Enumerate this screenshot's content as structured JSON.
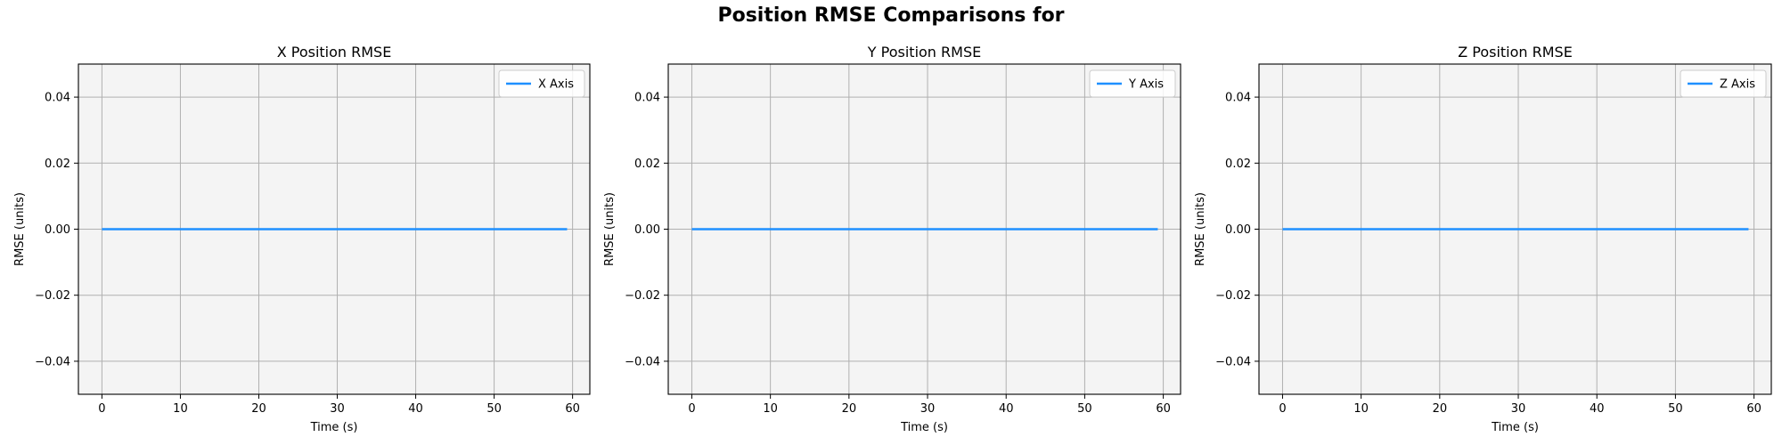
{
  "suptitle": "Position RMSE Comparisons for",
  "colors": {
    "line": "#1e90ff",
    "plot_background": "#f4f4f4",
    "grid": "#b0b0b0",
    "axes_edge": "#000000"
  },
  "chart_data": [
    {
      "type": "line",
      "title": "X Position RMSE",
      "xlabel": "Time (s)",
      "ylabel": "RMSE (units)",
      "xlim": [
        -3,
        62.2
      ],
      "ylim": [
        -0.05,
        0.05
      ],
      "xticks": [
        0,
        10,
        20,
        30,
        40,
        50,
        60
      ],
      "xtick_labels": [
        "0",
        "10",
        "20",
        "30",
        "40",
        "50",
        "60"
      ],
      "yticks": [
        -0.04,
        -0.02,
        0.0,
        0.02,
        0.04
      ],
      "ytick_labels": [
        "−0.04",
        "−0.02",
        "0.00",
        "0.02",
        "0.04"
      ],
      "grid": true,
      "legend_position": "upper right",
      "series": [
        {
          "name": "X Axis",
          "color": "#1e90ff",
          "x": [
            0,
            59.3
          ],
          "y": [
            0,
            0
          ]
        }
      ]
    },
    {
      "type": "line",
      "title": "Y Position RMSE",
      "xlabel": "Time (s)",
      "ylabel": "RMSE (units)",
      "xlim": [
        -3,
        62.2
      ],
      "ylim": [
        -0.05,
        0.05
      ],
      "xticks": [
        0,
        10,
        20,
        30,
        40,
        50,
        60
      ],
      "xtick_labels": [
        "0",
        "10",
        "20",
        "30",
        "40",
        "50",
        "60"
      ],
      "yticks": [
        -0.04,
        -0.02,
        0.0,
        0.02,
        0.04
      ],
      "ytick_labels": [
        "−0.04",
        "−0.02",
        "0.00",
        "0.02",
        "0.04"
      ],
      "grid": true,
      "legend_position": "upper right",
      "series": [
        {
          "name": "Y Axis",
          "color": "#1e90ff",
          "x": [
            0,
            59.3
          ],
          "y": [
            0,
            0
          ]
        }
      ]
    },
    {
      "type": "line",
      "title": "Z Position RMSE",
      "xlabel": "Time (s)",
      "ylabel": "RMSE (units)",
      "xlim": [
        -3,
        62.2
      ],
      "ylim": [
        -0.05,
        0.05
      ],
      "xticks": [
        0,
        10,
        20,
        30,
        40,
        50,
        60
      ],
      "xtick_labels": [
        "0",
        "10",
        "20",
        "30",
        "40",
        "50",
        "60"
      ],
      "yticks": [
        -0.04,
        -0.02,
        0.0,
        0.02,
        0.04
      ],
      "ytick_labels": [
        "−0.04",
        "−0.02",
        "0.00",
        "0.02",
        "0.04"
      ],
      "grid": true,
      "legend_position": "upper right",
      "series": [
        {
          "name": "Z Axis",
          "color": "#1e90ff",
          "x": [
            0,
            59.3
          ],
          "y": [
            0,
            0
          ]
        }
      ]
    }
  ]
}
